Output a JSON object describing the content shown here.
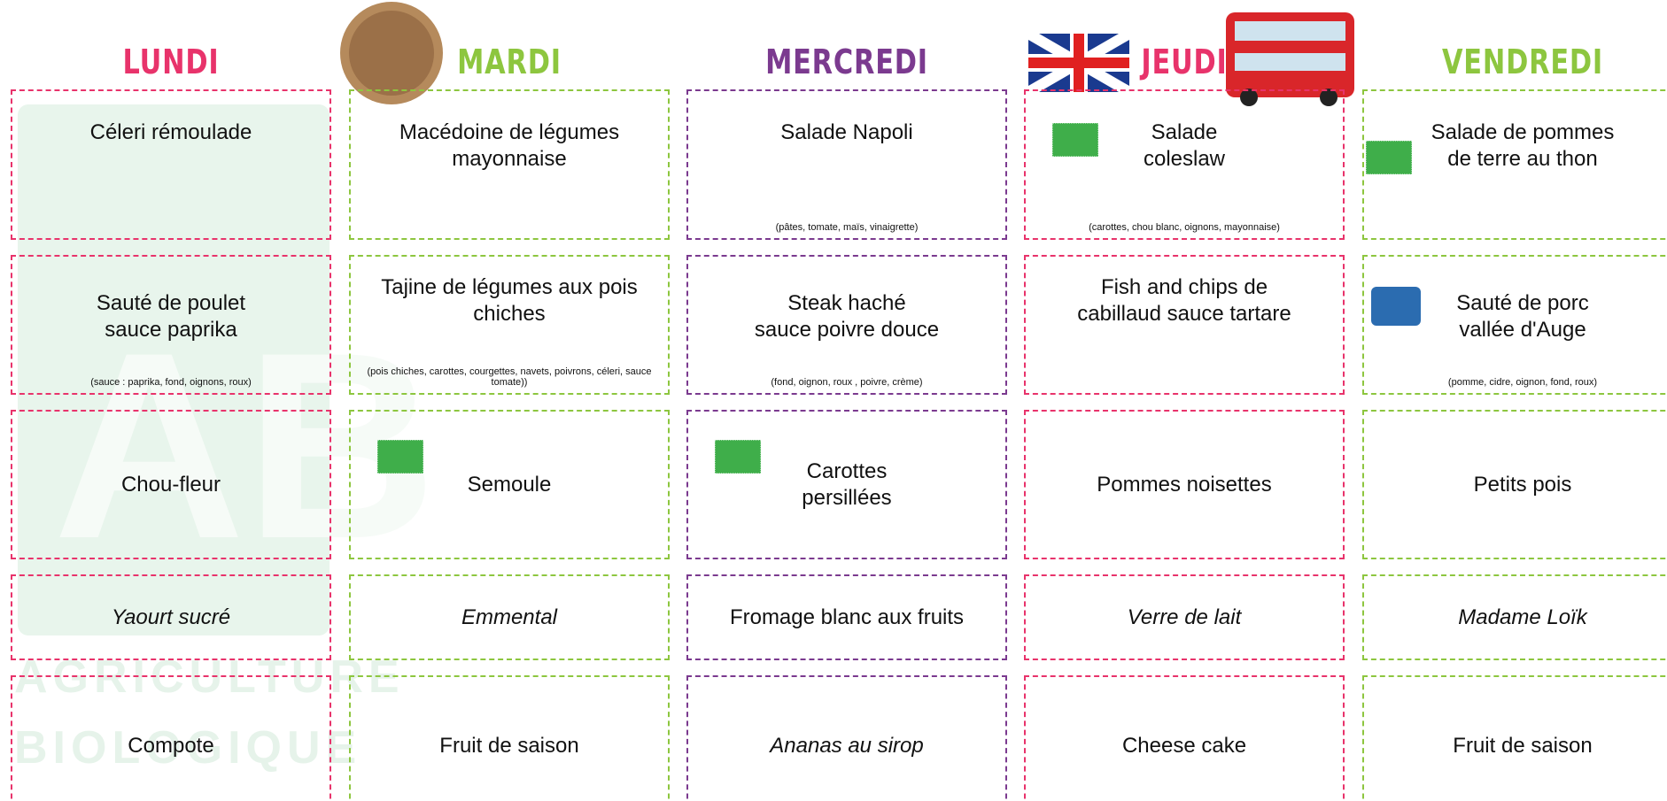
{
  "watermark": [
    "AGRICULTURE",
    "BIOLOGIQUE"
  ],
  "days": [
    {
      "name": "LUNDI",
      "color": "#e8336b",
      "items": [
        {
          "lines": [
            "Céleri rémoulade"
          ]
        },
        {
          "lines": [
            "Sauté de poulet",
            "sauce paprika"
          ],
          "sub": "(sauce : paprika, fond, oignons, roux)"
        },
        {
          "lines": [
            "Chou-fleur"
          ]
        },
        {
          "lines": [
            "Yaourt sucré"
          ],
          "italic": true
        },
        {
          "lines": [
            "Compote"
          ]
        }
      ]
    },
    {
      "name": "MARDI",
      "color": "#8dc63f",
      "items": [
        {
          "lines": [
            "Macédoine de légumes",
            "mayonnaise"
          ]
        },
        {
          "lines": [
            "Tajine de légumes aux pois",
            "chiches"
          ],
          "sub": "(pois chiches, carottes, courgettes, navets, poivrons, céleri, sauce tomate))"
        },
        {
          "lines": [
            "Semoule"
          ],
          "bio": true
        },
        {
          "lines": [
            "Emmental"
          ],
          "italic": true
        },
        {
          "lines": [
            "Fruit de saison"
          ]
        }
      ]
    },
    {
      "name": "MERCREDI",
      "color": "#7b3a8f",
      "items": [
        {
          "lines": [
            "Salade Napoli"
          ],
          "sub": "(pâtes, tomate, maïs, vinaigrette)"
        },
        {
          "lines": [
            "Steak haché",
            "sauce poivre douce"
          ],
          "sub": "(fond, oignon, roux , poivre, crème)"
        },
        {
          "lines": [
            "Carottes",
            "persillées"
          ],
          "bio": true
        },
        {
          "lines": [
            "Fromage blanc aux fruits"
          ]
        },
        {
          "lines": [
            "Ananas au sirop"
          ],
          "italic": true
        }
      ]
    },
    {
      "name": "JEUDI",
      "color": "#e8336b",
      "items": [
        {
          "lines": [
            "Salade",
            "coleslaw"
          ],
          "sub": "(carottes, chou blanc, oignons, mayonnaise)",
          "bio": true
        },
        {
          "lines": [
            "Fish and chips de",
            "cabillaud sauce tartare"
          ]
        },
        {
          "lines": [
            "Pommes noisettes"
          ]
        },
        {
          "lines": [
            "Verre de lait"
          ],
          "italic": true
        },
        {
          "lines": [
            "Cheese cake"
          ]
        }
      ]
    },
    {
      "name": "VENDREDI",
      "color": "#8dc63f",
      "items": [
        {
          "lines": [
            "Salade de pommes",
            "de terre au thon"
          ],
          "bio": true
        },
        {
          "lines": [
            "Sauté de porc",
            "vallée d'Auge"
          ],
          "sub": "(pomme, cidre, oignon, fond, roux)",
          "bbc": true
        },
        {
          "lines": [
            "Petits pois"
          ]
        },
        {
          "lines": [
            "Madame Loïk"
          ],
          "italic": true
        },
        {
          "lines": [
            "Fruit de saison"
          ]
        }
      ]
    }
  ]
}
